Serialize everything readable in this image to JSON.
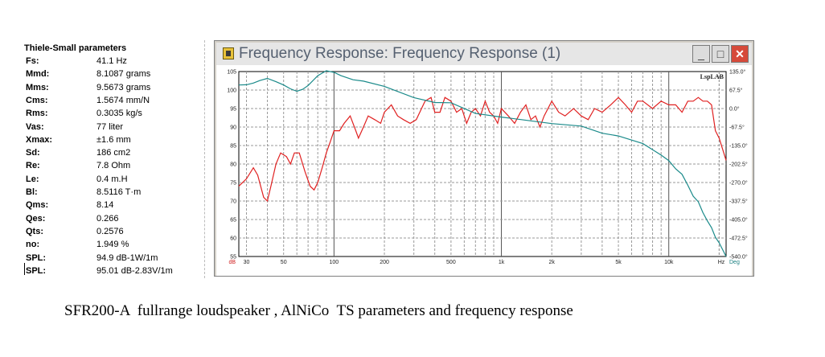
{
  "ts_panel": {
    "title": "Thiele-Small parameters",
    "rows": [
      {
        "label": "Fs:",
        "value": "41.1 Hz"
      },
      {
        "label": "Mmd:",
        "value": "8.1087 grams"
      },
      {
        "label": "Mms:",
        "value": "9.5673 grams"
      },
      {
        "label": "Cms:",
        "value": "1.5674 mm/N"
      },
      {
        "label": "Rms:",
        "value": "0.3035 kg/s"
      },
      {
        "label": "Vas:",
        "value": "77 liter"
      },
      {
        "label": "Xmax:",
        "value": "±1.6 mm"
      },
      {
        "label": "Sd:",
        "value": "186 cm2"
      },
      {
        "label": "Re:",
        "value": "7.8 Ohm"
      },
      {
        "label": "Le:",
        "value": "0.4 m.H"
      },
      {
        "label": "Bl:",
        "value": "8.5116 T·m"
      },
      {
        "label": "Qms:",
        "value": "8.14"
      },
      {
        "label": "Qes:",
        "value": "0.266"
      },
      {
        "label": "Qts:",
        "value": "0.2576"
      },
      {
        "label": "no:",
        "value": "1.949 %"
      },
      {
        "label": "SPL:",
        "value": "94.9 dB-1W/1m"
      },
      {
        "label": "SPL:",
        "value": "95.01 dB-2.83V/1m"
      }
    ]
  },
  "window": {
    "title": "Frequency Response: Frequency Response (1)",
    "buttons": {
      "minimize": "_",
      "maximize": "□",
      "close": "✕"
    }
  },
  "chart_data": {
    "type": "line",
    "watermark": "LspLAB",
    "x_scale": "log",
    "xlim": [
      27,
      22000
    ],
    "x_unit": "Hz",
    "x_ticks": [
      {
        "v": 30,
        "label": "30"
      },
      {
        "v": 50,
        "label": "50"
      },
      {
        "v": 100,
        "label": "100"
      },
      {
        "v": 200,
        "label": "200"
      },
      {
        "v": 500,
        "label": "500"
      },
      {
        "v": 1000,
        "label": "1k"
      },
      {
        "v": 2000,
        "label": "2k"
      },
      {
        "v": 5000,
        "label": "5k"
      },
      {
        "v": 10000,
        "label": "10k"
      }
    ],
    "y_left_unit": "dB",
    "ylim_left": [
      55,
      105
    ],
    "y_left_ticks": [
      55,
      60,
      65,
      70,
      75,
      80,
      85,
      90,
      95,
      100,
      105
    ],
    "y_right_unit": "Deg",
    "ylim_right": [
      -540,
      135
    ],
    "y_right_ticks": [
      "135.0°",
      "67.5°",
      "0.0°",
      "-67.5°",
      "-135.0°",
      "-202.5°",
      "-270.0°",
      "-337.5°",
      "-405.0°",
      "-472.5°",
      "-540.0°"
    ],
    "grid": true,
    "series": [
      {
        "color": "#e02020",
        "axis": "left",
        "points": [
          [
            27,
            74
          ],
          [
            30,
            76
          ],
          [
            33,
            79
          ],
          [
            35,
            77
          ],
          [
            38,
            71
          ],
          [
            40,
            70
          ],
          [
            42,
            74
          ],
          [
            45,
            80
          ],
          [
            48,
            83
          ],
          [
            52,
            82
          ],
          [
            55,
            80
          ],
          [
            58,
            83
          ],
          [
            62,
            83
          ],
          [
            67,
            78
          ],
          [
            72,
            74
          ],
          [
            76,
            73
          ],
          [
            80,
            75
          ],
          [
            85,
            79
          ],
          [
            90,
            83
          ],
          [
            95,
            86
          ],
          [
            100,
            89
          ],
          [
            108,
            89
          ],
          [
            115,
            91
          ],
          [
            125,
            93
          ],
          [
            135,
            89
          ],
          [
            140,
            87
          ],
          [
            150,
            90
          ],
          [
            160,
            93
          ],
          [
            175,
            92
          ],
          [
            190,
            91
          ],
          [
            200,
            94
          ],
          [
            220,
            96
          ],
          [
            240,
            93
          ],
          [
            260,
            92
          ],
          [
            285,
            91
          ],
          [
            310,
            92
          ],
          [
            350,
            97
          ],
          [
            380,
            98
          ],
          [
            400,
            94
          ],
          [
            430,
            94
          ],
          [
            460,
            98
          ],
          [
            500,
            97
          ],
          [
            540,
            94
          ],
          [
            580,
            95
          ],
          [
            620,
            91
          ],
          [
            660,
            94
          ],
          [
            700,
            95
          ],
          [
            750,
            93
          ],
          [
            800,
            97
          ],
          [
            850,
            94
          ],
          [
            900,
            93
          ],
          [
            950,
            91
          ],
          [
            1000,
            95
          ],
          [
            1100,
            93
          ],
          [
            1200,
            91
          ],
          [
            1300,
            94
          ],
          [
            1400,
            96
          ],
          [
            1500,
            92
          ],
          [
            1600,
            93
          ],
          [
            1700,
            90
          ],
          [
            1800,
            93
          ],
          [
            2000,
            97
          ],
          [
            2200,
            94
          ],
          [
            2400,
            93
          ],
          [
            2700,
            95
          ],
          [
            3000,
            93
          ],
          [
            3300,
            92
          ],
          [
            3600,
            95
          ],
          [
            4000,
            94
          ],
          [
            4500,
            96
          ],
          [
            5000,
            98
          ],
          [
            5500,
            96
          ],
          [
            6000,
            94
          ],
          [
            6500,
            97
          ],
          [
            7000,
            97
          ],
          [
            8000,
            95
          ],
          [
            9000,
            97
          ],
          [
            10000,
            96
          ],
          [
            11000,
            96
          ],
          [
            12000,
            94
          ],
          [
            13000,
            97
          ],
          [
            14000,
            97
          ],
          [
            15000,
            98
          ],
          [
            16000,
            97
          ],
          [
            17000,
            97
          ],
          [
            18000,
            96
          ],
          [
            19000,
            89
          ],
          [
            20000,
            87
          ],
          [
            22000,
            81
          ]
        ]
      },
      {
        "color": "#1a8a8a",
        "axis": "right",
        "points": [
          [
            27,
            86
          ],
          [
            30,
            87
          ],
          [
            33,
            93
          ],
          [
            36,
            102
          ],
          [
            40,
            110
          ],
          [
            45,
            98
          ],
          [
            50,
            86
          ],
          [
            55,
            72
          ],
          [
            60,
            63
          ],
          [
            65,
            70
          ],
          [
            70,
            84
          ],
          [
            80,
            120
          ],
          [
            90,
            138
          ],
          [
            100,
            132
          ],
          [
            110,
            120
          ],
          [
            130,
            105
          ],
          [
            150,
            100
          ],
          [
            200,
            81
          ],
          [
            300,
            40
          ],
          [
            400,
            22
          ],
          [
            500,
            21
          ],
          [
            700,
            -18
          ],
          [
            1000,
            -31
          ],
          [
            1500,
            -45
          ],
          [
            2000,
            -55
          ],
          [
            3000,
            -64
          ],
          [
            4000,
            -90
          ],
          [
            5000,
            -100
          ],
          [
            6000,
            -115
          ],
          [
            7000,
            -128
          ],
          [
            8000,
            -150
          ],
          [
            9000,
            -170
          ],
          [
            10000,
            -190
          ],
          [
            11000,
            -220
          ],
          [
            12000,
            -240
          ],
          [
            13000,
            -280
          ],
          [
            14000,
            -320
          ],
          [
            15000,
            -340
          ],
          [
            16000,
            -380
          ],
          [
            17000,
            -410
          ],
          [
            18000,
            -435
          ],
          [
            19000,
            -470
          ],
          [
            20000,
            -490
          ],
          [
            22000,
            -540
          ]
        ]
      }
    ]
  },
  "caption": "SFR200-A  fullrange loudspeaker , AlNiCo  TS parameters and frequency response"
}
